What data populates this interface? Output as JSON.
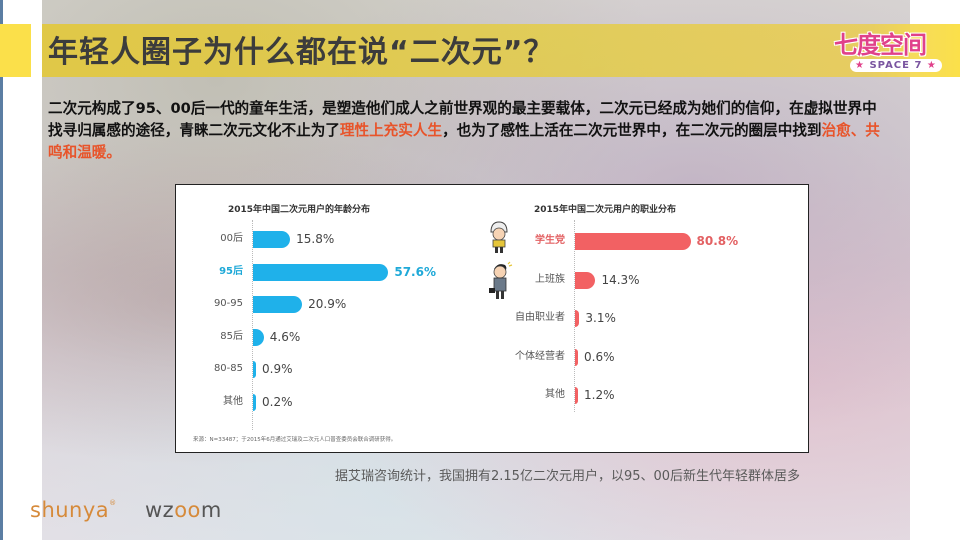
{
  "slide": {
    "title": "年轻人圈子为什么都在说“二次元”？",
    "brand_logo": {
      "main": "七度空间",
      "sub": "SPACE 7"
    },
    "intro": {
      "part1": "二次元构成了95、00后一代的童年生活，是塑造他们成人之前世界观的最主要载体，二次元已经成为她们的信仰，在虚拟世界中找寻归属感的途径，青睐二次元文化不止为了",
      "highlight1": "理性上充实人生",
      "part2": "，也为了感性上活在二次元世界中，在二次元的圈层中找到",
      "highlight2": "治愈、共鸣和温暖。"
    },
    "summary": "据艾瑞咨询统计，我国拥有2.15亿二次元用户，以95、00后新生代年轻群体居多",
    "footer_logos": {
      "shunya": "shunya",
      "shunya_mark": "®",
      "wzoom_w": "wz",
      "wzoom_oo": "oo",
      "wzoom_m": "m"
    },
    "colors": {
      "age_bar": "#1fb1ea",
      "job_bar": "#f26163",
      "highlight_text": "#e8542a",
      "title_band": "#e6cb3a"
    }
  },
  "chart_data": [
    {
      "type": "bar",
      "orientation": "horizontal",
      "title": "2015年中国二次元用户的年龄分布",
      "categories": [
        "00后",
        "95后",
        "90-95",
        "85后",
        "80-85",
        "其他"
      ],
      "values": [
        15.8,
        57.6,
        20.9,
        4.6,
        0.9,
        0.2
      ],
      "labels": [
        "15.8%",
        "57.6%",
        "20.9%",
        "4.6%",
        "0.9%",
        "0.2%"
      ],
      "highlight": "95后",
      "color": "#1fb1ea",
      "unit": "%",
      "source": "来源：N=33487；于2015年6月通过艾瑞及二次元人口普查委员会联合调研获得。"
    },
    {
      "type": "bar",
      "orientation": "horizontal",
      "title": "2015年中国二次元用户的职业分布",
      "categories": [
        "学生党",
        "上班族",
        "自由职业者",
        "个体经营者",
        "其他"
      ],
      "values": [
        80.8,
        14.3,
        3.1,
        0.6,
        1.2
      ],
      "labels": [
        "80.8%",
        "14.3%",
        "3.1%",
        "0.6%",
        "1.2%"
      ],
      "highlight": "学生党",
      "color": "#f26163",
      "unit": "%",
      "icons": [
        "student-icon",
        "office-worker-icon"
      ]
    }
  ]
}
